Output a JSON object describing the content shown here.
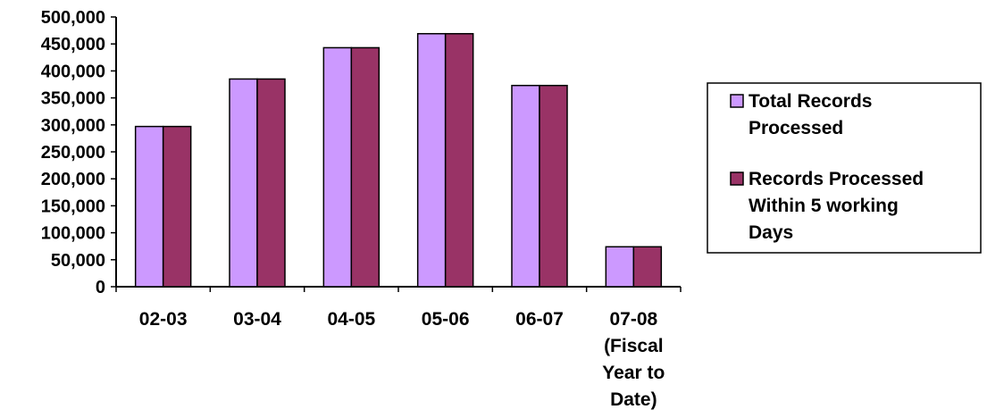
{
  "chart_data": {
    "type": "bar",
    "categories": [
      [
        "02-03"
      ],
      [
        "03-04"
      ],
      [
        "04-05"
      ],
      [
        "05-06"
      ],
      [
        "06-07"
      ],
      [
        "07-08",
        "(Fiscal",
        "Year to",
        "Date)"
      ]
    ],
    "series": [
      {
        "name": [
          "Total Records",
          "Processed"
        ],
        "color": "#cc99ff",
        "values": [
          297000,
          385000,
          443000,
          469000,
          373000,
          74000
        ]
      },
      {
        "name": [
          "Records Processed",
          "Within 5 working",
          "Days"
        ],
        "color": "#993366",
        "values": [
          297000,
          385000,
          443000,
          469000,
          373000,
          74000
        ]
      }
    ],
    "ylim": [
      0,
      500000
    ],
    "yticks": [
      "0",
      "50,000",
      "100,000",
      "150,000",
      "200,000",
      "250,000",
      "300,000",
      "350,000",
      "400,000",
      "450,000",
      "500,000"
    ],
    "grid": false,
    "legend": "right"
  }
}
